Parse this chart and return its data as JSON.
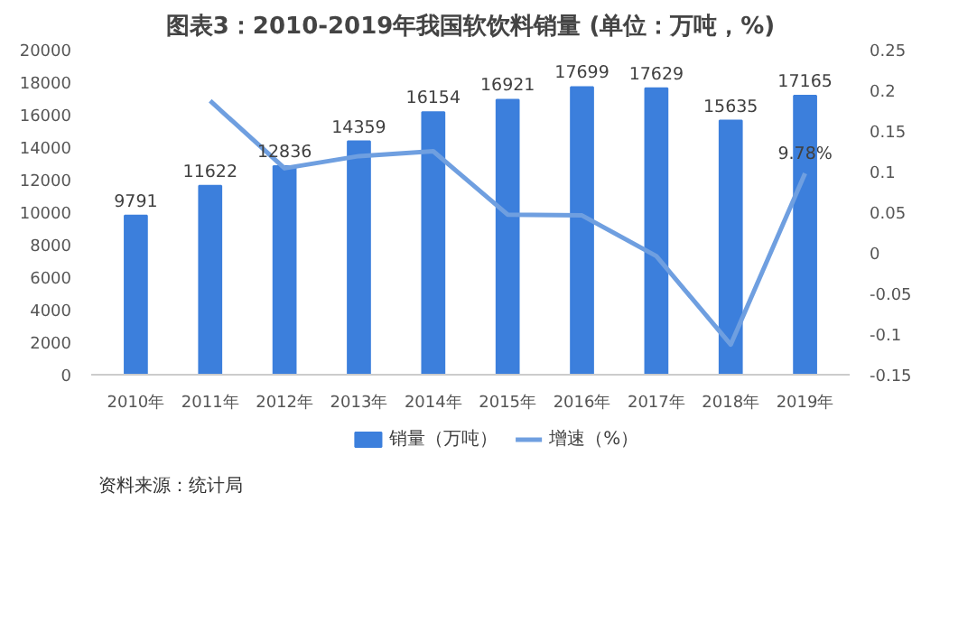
{
  "chart_data": {
    "type": "bar",
    "title": "图表3：2010-2019年我国软饮料销量 (单位：万吨，%)",
    "categories": [
      "2010年",
      "2011年",
      "2012年",
      "2013年",
      "2014年",
      "2015年",
      "2016年",
      "2017年",
      "2018年",
      "2019年"
    ],
    "series": [
      {
        "name": "销量（万吨）",
        "color": "#3c7fdc",
        "values": [
          9791,
          11622,
          12836,
          14359,
          16154,
          16921,
          17699,
          17629,
          15635,
          17165
        ],
        "value_labels": [
          "9791",
          "11622",
          "12836",
          "14359",
          "16154",
          "16921",
          "17699",
          "17629",
          "15635",
          "17165"
        ]
      },
      {
        "name": "增速（%）",
        "type": "line",
        "axis": "y2",
        "color": "#6f9fe0",
        "values": [
          null,
          0.187,
          0.104,
          0.119,
          0.125,
          0.047,
          0.046,
          -0.004,
          -0.113,
          0.0978
        ],
        "value_labels": [
          null,
          null,
          null,
          null,
          null,
          null,
          null,
          null,
          null,
          "9.78%"
        ]
      }
    ],
    "ylim": [
      0,
      20000
    ],
    "yticks": [
      0,
      2000,
      4000,
      6000,
      8000,
      10000,
      12000,
      14000,
      16000,
      18000,
      20000
    ],
    "y2lim": [
      -0.15,
      0.25
    ],
    "y2ticks": [
      -0.15,
      -0.1,
      -0.05,
      0,
      0.05,
      0.1,
      0.15,
      0.2,
      0.25
    ],
    "legend": "bottom",
    "grid": false,
    "annotations": [
      "资料来源：统计局"
    ]
  }
}
